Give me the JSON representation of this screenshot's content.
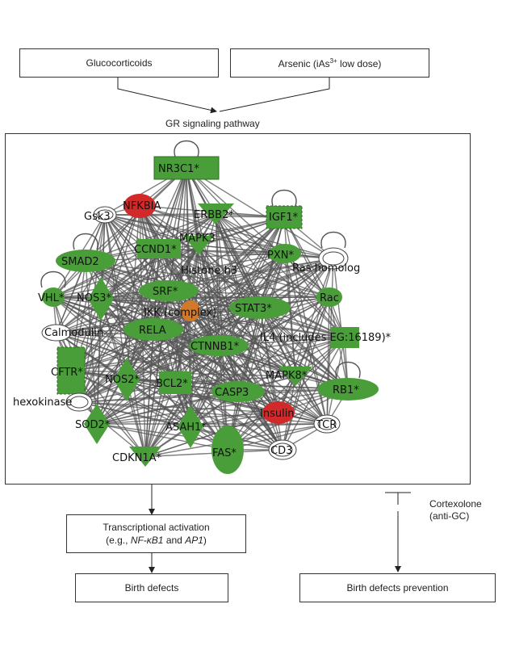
{
  "inputs": {
    "glucocorticoids": "Glucocorticoids",
    "arsenic_prefix": "Arsenic (iAs",
    "arsenic_sup": "3+",
    "arsenic_suffix": " low dose)"
  },
  "pathway_label": "GR signaling pathway",
  "network": {
    "nodes": {
      "nr3c1": "NR3C1*",
      "nfkbia": "NFKBIA",
      "gsk3": "Gsk3",
      "erbb2": "ERBB2*",
      "igf1": "IGF1*",
      "mapk3": "MAPK3",
      "ccnd1": "CCND1*",
      "smad2": "SMAD2",
      "pxn": "PXN*",
      "histone": "Histone h3",
      "ras": "Ras homolog",
      "srf": "SRF*",
      "vhl": "VHL*",
      "nos3": "NOS3*",
      "ikk": "IKK (complex)",
      "stat3": "STAT3*",
      "rac": "Rac",
      "calmodulin": "Calmodulin",
      "rela": "RELA",
      "ctnnb1": "CTNNB1*",
      "il4": "IL4 (includes EG:16189)*",
      "cftr": "CFTR*",
      "nos2": "NOS2*",
      "bcl2": "BCL2*",
      "mapk8": "MAPK8*",
      "rb1": "RB1*",
      "hexokinase": "hexokinase",
      "casp3": "CASP3",
      "sod2": "SOD2*",
      "insulin": "Insulin",
      "asah1": "ASAH1*",
      "tcr": "TCR",
      "fas": "FAS*",
      "cd3": "CD3",
      "cdkn1a": "CDKN1A*"
    }
  },
  "outputs": {
    "activation_line1": "Transcriptional activation",
    "activation_prefix": "(e.g., ",
    "activation_gene1": "NF-κB1",
    "activation_and": " and ",
    "activation_gene2": "AP1",
    "activation_suffix": ")",
    "birth_defects": "Birth defects",
    "prevention": "Birth defects prevention",
    "inhibitor_line1": "Cortexolone",
    "inhibitor_line2": "(anti-GC)"
  },
  "colors": {
    "node_green": "#4a9e3a",
    "node_red": "#d22a2a",
    "edge_gray": "#555555"
  }
}
